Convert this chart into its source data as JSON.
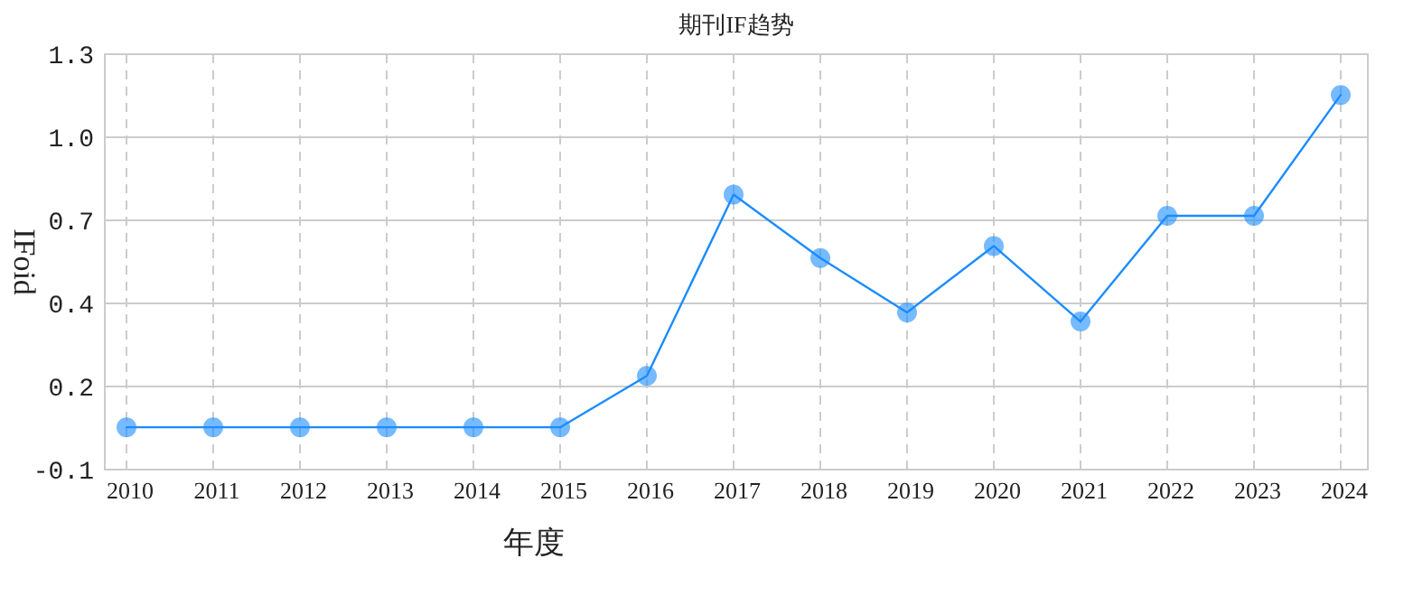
{
  "chart_data": {
    "type": "line",
    "title": "期刊IF趋势",
    "xlabel": "年度",
    "ylabel": "IFoid",
    "categories": [
      "2010",
      "2011",
      "2012",
      "2013",
      "2014",
      "2015",
      "2016",
      "2017",
      "2018",
      "2019",
      "2020",
      "2021",
      "2022",
      "2023",
      "2024"
    ],
    "series": [
      {
        "color": "#1a8cff",
        "values": [
          0.04,
          0.04,
          0.04,
          0.04,
          0.04,
          0.04,
          0.21,
          0.81,
          0.6,
          0.42,
          0.64,
          0.39,
          0.74,
          0.74,
          1.14
        ]
      }
    ],
    "ylim": [
      -0.1,
      1.275
    ],
    "yticks": [
      -0.1,
      {
        "value": 0.175,
        "label": "0.2"
      },
      {
        "value": 0.45,
        "label": "0.4"
      },
      {
        "value": 0.725,
        "label": "0.7"
      },
      {
        "value": 1.0,
        "label": "1.0"
      },
      {
        "value": 1.275,
        "label": "1.3"
      }
    ],
    "grid": true,
    "marker": "circle",
    "line_style": "solid"
  }
}
